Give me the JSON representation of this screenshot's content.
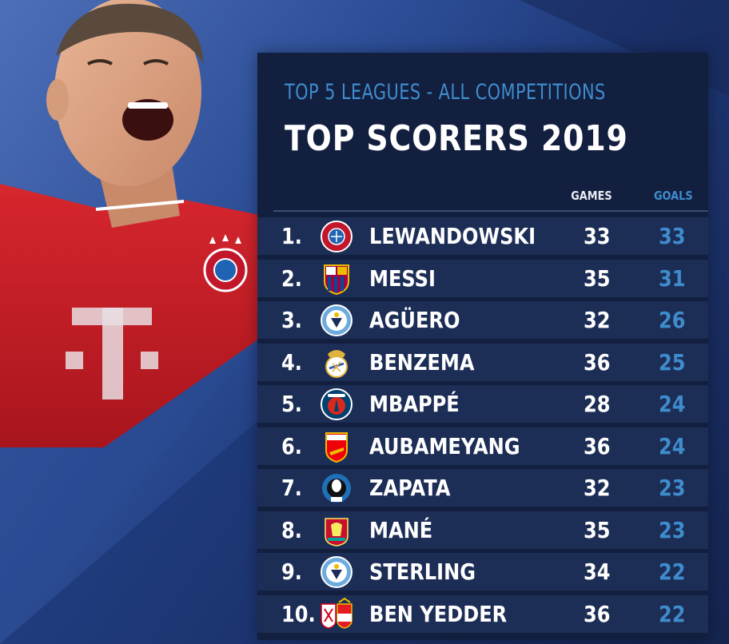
{
  "header": {
    "subtitle": "TOP 5 LEAGUES - ALL COMPETITIONS",
    "title": "TOP SCORERS 2019"
  },
  "columns": {
    "games": "GAMES",
    "goals": "GOALS"
  },
  "colors": {
    "accent": "#3f8ccd",
    "panel": "#121f3f",
    "row": "#1c2d56",
    "jersey": "#d7262e"
  },
  "rows": [
    {
      "rank": "1.",
      "name": "LEWANDOWSKI",
      "games": "33",
      "goals": "33",
      "crest": "bayern-crest-icon"
    },
    {
      "rank": "2.",
      "name": "MESSI",
      "games": "35",
      "goals": "31",
      "crest": "barcelona-crest-icon"
    },
    {
      "rank": "3.",
      "name": "AGÜERO",
      "games": "32",
      "goals": "26",
      "crest": "man-city-crest-icon"
    },
    {
      "rank": "4.",
      "name": "BENZEMA",
      "games": "36",
      "goals": "25",
      "crest": "real-madrid-crest-icon"
    },
    {
      "rank": "5.",
      "name": "MBAPPÉ",
      "games": "28",
      "goals": "24",
      "crest": "psg-crest-icon"
    },
    {
      "rank": "6.",
      "name": "AUBAMEYANG",
      "games": "36",
      "goals": "24",
      "crest": "arsenal-crest-icon"
    },
    {
      "rank": "7.",
      "name": "ZAPATA",
      "games": "32",
      "goals": "23",
      "crest": "atalanta-crest-icon"
    },
    {
      "rank": "8.",
      "name": "MANÉ",
      "games": "35",
      "goals": "23",
      "crest": "liverpool-crest-icon"
    },
    {
      "rank": "9.",
      "name": "STERLING",
      "games": "34",
      "goals": "22",
      "crest": "man-city-crest-icon"
    },
    {
      "rank": "10.",
      "name": "BEN YEDDER",
      "games": "36",
      "goals": "22",
      "crest": "sevilla-monaco-crest-icon"
    }
  ]
}
